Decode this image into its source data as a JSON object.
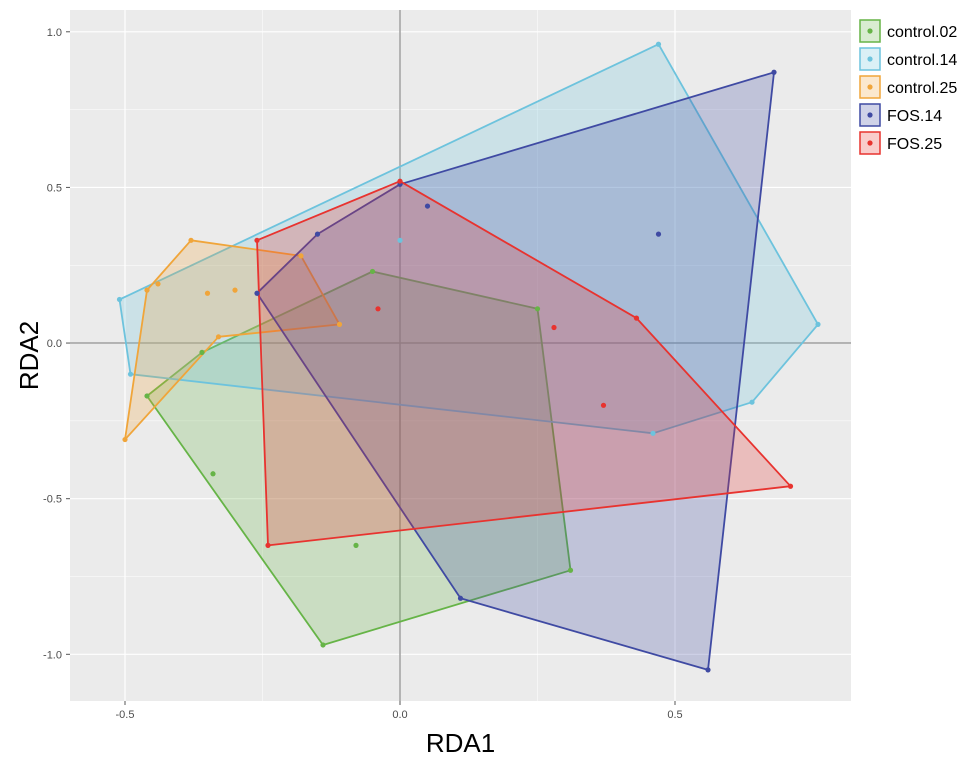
{
  "chart_data": {
    "type": "scatter",
    "xlabel": "RDA1",
    "ylabel": "RDA2",
    "xlim": [
      -0.6,
      0.82
    ],
    "ylim": [
      -1.15,
      1.07
    ],
    "xticks": [
      -0.5,
      0.0,
      0.5
    ],
    "xtick_labels": [
      "-0.5",
      "0.0",
      "0.5"
    ],
    "yticks": [
      -1.0,
      -0.5,
      0.0,
      0.5,
      1.0
    ],
    "ytick_labels": [
      "-1.0",
      "-0.5",
      "0.0",
      "0.5",
      "1.0"
    ],
    "reference_lines": {
      "x": 0,
      "y": 0
    },
    "grid": true,
    "legend_position": "top-right",
    "series": [
      {
        "name": "control.02",
        "color": "#66b447",
        "hull": [
          [
            -0.05,
            0.23
          ],
          [
            0.25,
            0.11
          ],
          [
            0.31,
            -0.73
          ],
          [
            -0.14,
            -0.97
          ],
          [
            -0.46,
            -0.17
          ],
          [
            -0.36,
            -0.03
          ]
        ],
        "points": [
          [
            -0.05,
            0.23
          ],
          [
            0.25,
            0.11
          ],
          [
            0.31,
            -0.73
          ],
          [
            -0.14,
            -0.97
          ],
          [
            -0.46,
            -0.17
          ],
          [
            -0.36,
            -0.03
          ],
          [
            -0.08,
            -0.65
          ],
          [
            -0.34,
            -0.42
          ]
        ]
      },
      {
        "name": "control.14",
        "color": "#6dc3dd",
        "hull": [
          [
            0.47,
            0.96
          ],
          [
            0.76,
            0.06
          ],
          [
            0.64,
            -0.19
          ],
          [
            0.46,
            -0.29
          ],
          [
            -0.49,
            -0.1
          ],
          [
            -0.51,
            0.14
          ]
        ],
        "points": [
          [
            0.47,
            0.96
          ],
          [
            0.76,
            0.06
          ],
          [
            0.64,
            -0.19
          ],
          [
            0.46,
            -0.29
          ],
          [
            -0.49,
            -0.1
          ],
          [
            -0.51,
            0.14
          ],
          [
            0.0,
            0.33
          ]
        ]
      },
      {
        "name": "control.25",
        "color": "#f0a53a",
        "hull": [
          [
            -0.38,
            0.33
          ],
          [
            -0.18,
            0.28
          ],
          [
            -0.11,
            0.06
          ],
          [
            -0.33,
            0.02
          ],
          [
            -0.5,
            -0.31
          ],
          [
            -0.46,
            0.17
          ]
        ],
        "points": [
          [
            -0.38,
            0.33
          ],
          [
            -0.18,
            0.28
          ],
          [
            -0.11,
            0.06
          ],
          [
            -0.33,
            0.02
          ],
          [
            -0.5,
            -0.31
          ],
          [
            -0.46,
            0.17
          ],
          [
            -0.44,
            0.19
          ],
          [
            -0.3,
            0.17
          ],
          [
            -0.35,
            0.16
          ]
        ]
      },
      {
        "name": "FOS.14",
        "color": "#3f4aa3",
        "hull": [
          [
            -0.15,
            0.35
          ],
          [
            0.0,
            0.51
          ],
          [
            0.68,
            0.87
          ],
          [
            0.56,
            -1.05
          ],
          [
            0.11,
            -0.82
          ],
          [
            -0.26,
            0.16
          ]
        ],
        "points": [
          [
            -0.15,
            0.35
          ],
          [
            0.0,
            0.51
          ],
          [
            0.68,
            0.87
          ],
          [
            0.56,
            -1.05
          ],
          [
            0.11,
            -0.82
          ],
          [
            -0.26,
            0.16
          ],
          [
            0.05,
            0.44
          ],
          [
            0.47,
            0.35
          ]
        ]
      },
      {
        "name": "FOS.25",
        "color": "#e8332f",
        "hull": [
          [
            -0.26,
            0.33
          ],
          [
            0.0,
            0.52
          ],
          [
            0.43,
            0.08
          ],
          [
            0.71,
            -0.46
          ],
          [
            -0.24,
            -0.65
          ]
        ],
        "points": [
          [
            -0.26,
            0.33
          ],
          [
            0.0,
            0.52
          ],
          [
            0.43,
            0.08
          ],
          [
            0.71,
            -0.46
          ],
          [
            -0.24,
            -0.65
          ],
          [
            -0.04,
            0.11
          ],
          [
            0.28,
            0.05
          ],
          [
            0.37,
            -0.2
          ]
        ]
      }
    ]
  }
}
